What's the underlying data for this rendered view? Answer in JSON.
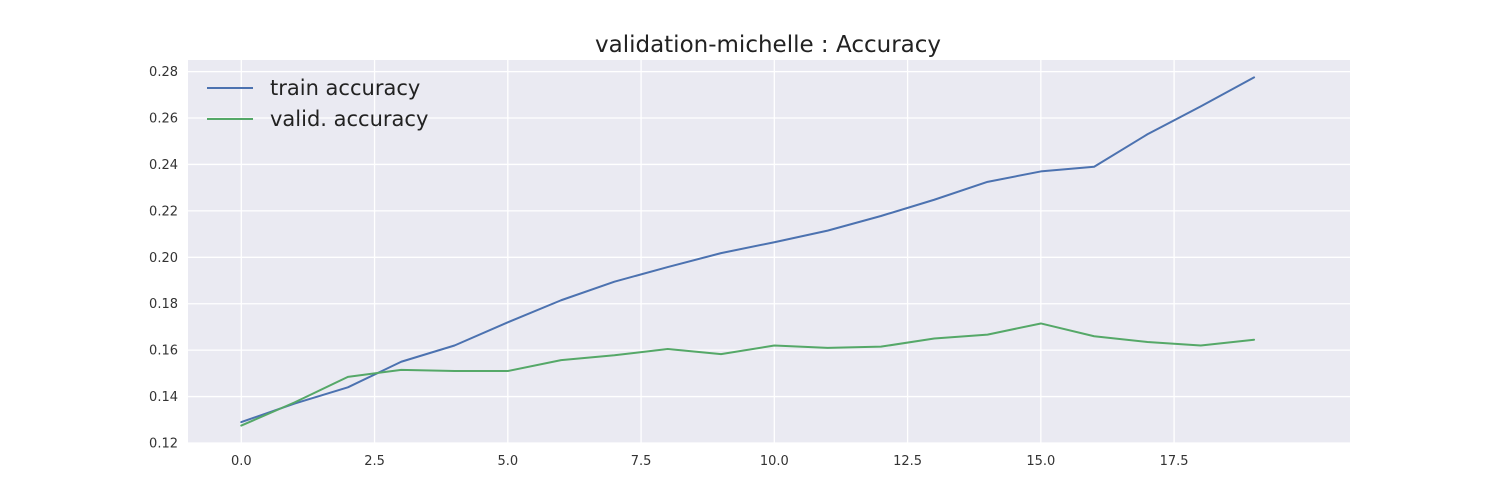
{
  "chart_data": {
    "type": "line",
    "title": "validation-michelle : Accuracy",
    "xlabel": "",
    "ylabel": "",
    "xlim": [
      -1,
      20.8
    ],
    "ylim": [
      0.12,
      0.285
    ],
    "xticks": [
      0.0,
      2.5,
      5.0,
      7.5,
      10.0,
      12.5,
      15.0,
      17.5
    ],
    "xtick_labels": [
      "0.0",
      "2.5",
      "5.0",
      "7.5",
      "10.0",
      "12.5",
      "15.0",
      "17.5"
    ],
    "yticks": [
      0.12,
      0.14,
      0.16,
      0.18,
      0.2,
      0.22,
      0.24,
      0.26,
      0.28
    ],
    "ytick_labels": [
      "0.12",
      "0.14",
      "0.16",
      "0.18",
      "0.20",
      "0.22",
      "0.24",
      "0.26",
      "0.28"
    ],
    "grid": true,
    "legend_position": "top-left",
    "background_color": "#eaeaf2",
    "grid_color": "#ffffff",
    "x": [
      0,
      1,
      2,
      3,
      4,
      5,
      6,
      7,
      8,
      9,
      10,
      11,
      12,
      13,
      14,
      15,
      16,
      17,
      18,
      19
    ],
    "series": [
      {
        "name": "train accuracy",
        "color": "#4c72b0",
        "values": [
          0.129,
          0.137,
          0.144,
          0.155,
          0.162,
          0.172,
          0.1815,
          0.1895,
          0.1958,
          0.2018,
          0.2065,
          0.2115,
          0.2178,
          0.2248,
          0.2325,
          0.237,
          0.239,
          0.253,
          0.265,
          0.2775
        ]
      },
      {
        "name": "valid. accuracy",
        "color": "#55a868",
        "values": [
          0.1275,
          0.1375,
          0.1485,
          0.1515,
          0.151,
          0.151,
          0.1557,
          0.1578,
          0.1605,
          0.1583,
          0.162,
          0.161,
          0.1615,
          0.165,
          0.1667,
          0.1715,
          0.166,
          0.1635,
          0.162,
          0.1645
        ]
      }
    ]
  }
}
